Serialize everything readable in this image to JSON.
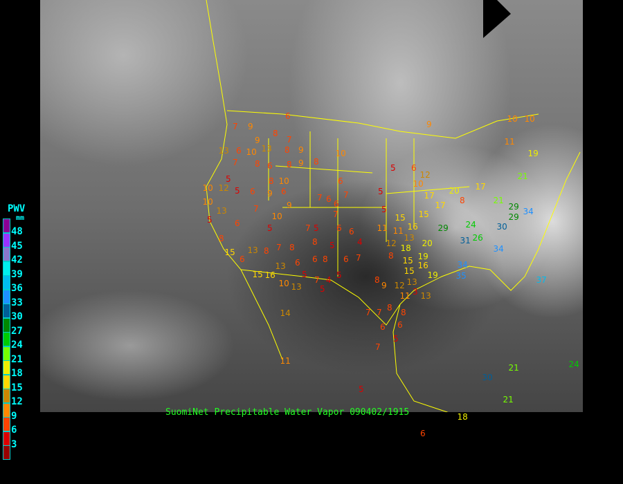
{
  "title": "SuomiNet Precipitable Water Vapor 090402/1915",
  "legend": {
    "title": "PWV",
    "unit": "mm",
    "labels": [
      "48",
      "45",
      "42",
      "39",
      "36",
      "33",
      "30",
      "27",
      "24",
      "21",
      "18",
      "15",
      "12",
      "9",
      "6",
      "3"
    ],
    "thresholds": [
      48,
      45,
      42,
      39,
      36,
      33,
      30,
      27,
      24,
      21,
      18,
      15,
      12,
      9,
      6,
      3,
      0
    ],
    "colors": [
      "#8a0096",
      "#9933ff",
      "#8877cc",
      "#00eeee",
      "#00bbee",
      "#1e90ff",
      "#005f99",
      "#008800",
      "#00cc00",
      "#77ff00",
      "#eeee00",
      "#ffd700",
      "#cc8800",
      "#ff8800",
      "#ff4400",
      "#dd0000",
      "#990000"
    ]
  },
  "map_line_color": "#ffff00",
  "stations": [
    6,
    7,
    9,
    8,
    13,
    6,
    10,
    9,
    13,
    8,
    9,
    7,
    7,
    8,
    6,
    8,
    9,
    8,
    10,
    5,
    5,
    6,
    8,
    10,
    10,
    12,
    10,
    13,
    9,
    6,
    9,
    7,
    6,
    7,
    6,
    5,
    6,
    12,
    10,
    5,
    5,
    6,
    10,
    7,
    5,
    7,
    5,
    7,
    6,
    6,
    4,
    6,
    5,
    15,
    11,
    16,
    11,
    12,
    18,
    13,
    8,
    15,
    6,
    13,
    8,
    7,
    8,
    8,
    5,
    6,
    6,
    8,
    6,
    7,
    5,
    5,
    4,
    7,
    13,
    10,
    15,
    16,
    13,
    5,
    8,
    9,
    12,
    13,
    3,
    13,
    11,
    14,
    7,
    7,
    8,
    8,
    6,
    6,
    5,
    7,
    11,
    5,
    6,
    18,
    30,
    21,
    21,
    24,
    17,
    20,
    8,
    17,
    17,
    29,
    24,
    26,
    31,
    30,
    29,
    29,
    34,
    21,
    34,
    34,
    35,
    37,
    19,
    15,
    20,
    19,
    15,
    10,
    10,
    11,
    19,
    21,
    9,
    8,
    16,
    15
  ]
}
